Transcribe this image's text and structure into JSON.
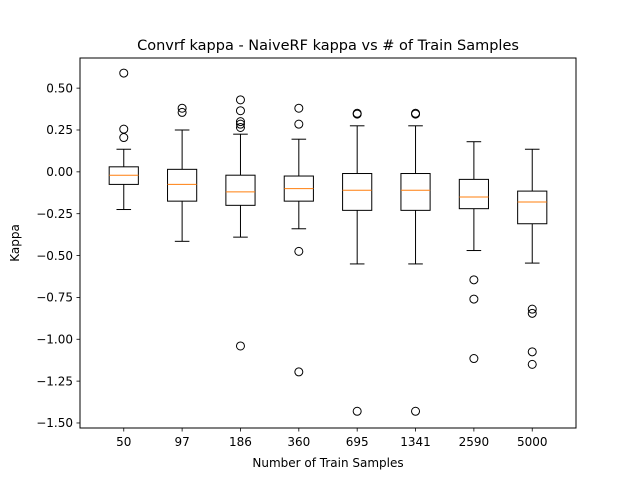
{
  "chart_data": {
    "type": "box",
    "title": "Convrf kappa - NaiveRF kappa vs # of Train Samples",
    "xlabel": "Number of Train Samples",
    "ylabel": "Kappa",
    "categories": [
      "50",
      "97",
      "186",
      "360",
      "695",
      "1341",
      "2590",
      "5000"
    ],
    "ylim": [
      -1.53,
      0.68
    ],
    "yticks": [
      -1.5,
      -1.25,
      -1.0,
      -0.75,
      -0.5,
      -0.25,
      0.0,
      0.25,
      0.5
    ],
    "ytick_labels": [
      "−1.50",
      "−1.25",
      "−1.00",
      "−0.75",
      "−0.50",
      "−0.25",
      "0.00",
      "0.25",
      "0.50"
    ],
    "grid": false,
    "box_color": "#000000",
    "median_color": "#ff7f0e",
    "boxes": [
      {
        "category": "50",
        "whisker_low": -0.225,
        "q1": -0.075,
        "median": -0.02,
        "q3": 0.03,
        "whisker_high": 0.135,
        "outliers": [
          0.59,
          0.255,
          0.205
        ]
      },
      {
        "category": "97",
        "whisker_low": -0.415,
        "q1": -0.175,
        "median": -0.075,
        "q3": 0.015,
        "whisker_high": 0.25,
        "outliers": [
          0.38,
          0.355
        ]
      },
      {
        "category": "186",
        "whisker_low": -0.39,
        "q1": -0.2,
        "median": -0.12,
        "q3": -0.02,
        "whisker_high": 0.225,
        "outliers": [
          0.43,
          0.365,
          0.3,
          0.285,
          0.265,
          -1.04
        ]
      },
      {
        "category": "360",
        "whisker_low": -0.34,
        "q1": -0.175,
        "median": -0.1,
        "q3": -0.025,
        "whisker_high": 0.195,
        "outliers": [
          0.38,
          0.285,
          -0.475,
          -1.195
        ]
      },
      {
        "category": "695",
        "whisker_low": -0.55,
        "q1": -0.23,
        "median": -0.11,
        "q3": -0.01,
        "whisker_high": 0.275,
        "outliers": [
          0.35,
          0.345,
          -1.43
        ]
      },
      {
        "category": "1341",
        "whisker_low": -0.55,
        "q1": -0.23,
        "median": -0.11,
        "q3": -0.01,
        "whisker_high": 0.275,
        "outliers": [
          0.35,
          0.345,
          -1.43
        ]
      },
      {
        "category": "2590",
        "whisker_low": -0.47,
        "q1": -0.22,
        "median": -0.15,
        "q3": -0.045,
        "whisker_high": 0.18,
        "outliers": [
          -0.645,
          -0.76,
          -1.115
        ]
      },
      {
        "category": "5000",
        "whisker_low": -0.545,
        "q1": -0.31,
        "median": -0.18,
        "q3": -0.115,
        "whisker_high": 0.135,
        "outliers": [
          -0.82,
          -0.845,
          -1.075,
          -1.15
        ]
      }
    ]
  }
}
